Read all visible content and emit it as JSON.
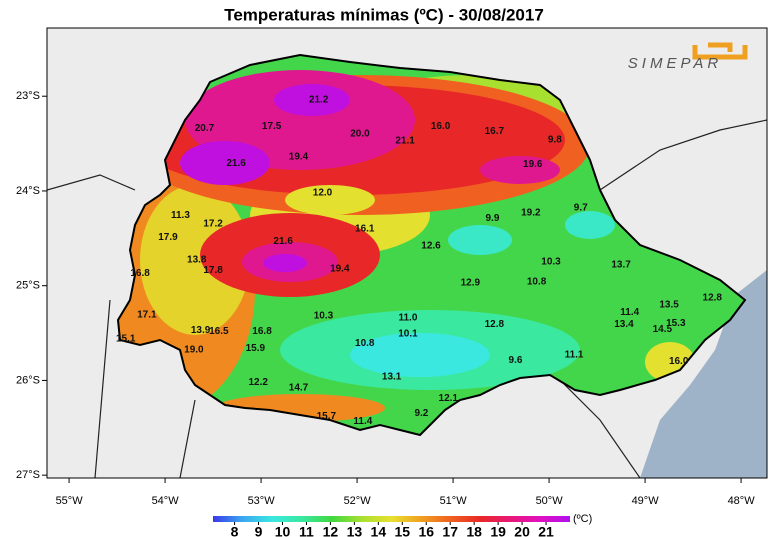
{
  "title": "Temperaturas mínimas  (ºC) - 30/08/2017",
  "logo": "SIMEPAR",
  "map": {
    "xlim": [
      -55.23,
      -47.73
    ],
    "ylim": [
      -27.03,
      -22.28
    ],
    "xticks": [
      {
        "value": -55,
        "label": "55°W"
      },
      {
        "value": -54,
        "label": "54°W"
      },
      {
        "value": -53,
        "label": "53°W"
      },
      {
        "value": -52,
        "label": "52°W"
      },
      {
        "value": -51,
        "label": "51°W"
      },
      {
        "value": -50,
        "label": "50°W"
      },
      {
        "value": -49,
        "label": "49°W"
      },
      {
        "value": -48,
        "label": "48°W"
      }
    ],
    "yticks": [
      {
        "value": -23,
        "label": "23°S"
      },
      {
        "value": -24,
        "label": "24°S"
      },
      {
        "value": -25,
        "label": "25°S"
      },
      {
        "value": -26,
        "label": "26°S"
      },
      {
        "value": -27,
        "label": "27°S"
      }
    ],
    "stations": [
      {
        "label": "21.2",
        "lon": -52.4,
        "lat": -23.04
      },
      {
        "label": "20.7",
        "lon": -53.59,
        "lat": -23.34
      },
      {
        "label": "17.5",
        "lon": -52.89,
        "lat": -23.32
      },
      {
        "label": "20.0",
        "lon": -51.97,
        "lat": -23.4
      },
      {
        "label": "21.1",
        "lon": -51.5,
        "lat": -23.47
      },
      {
        "label": "16.0",
        "lon": -51.13,
        "lat": -23.32
      },
      {
        "label": "16.7",
        "lon": -50.57,
        "lat": -23.37
      },
      {
        "label": "9.8",
        "lon": -49.94,
        "lat": -23.46
      },
      {
        "label": "21.6",
        "lon": -53.26,
        "lat": -23.71
      },
      {
        "label": "19.4",
        "lon": -52.61,
        "lat": -23.64
      },
      {
        "label": "19.6",
        "lon": -50.17,
        "lat": -23.72
      },
      {
        "label": "12.0",
        "lon": -52.36,
        "lat": -24.02
      },
      {
        "label": "11.3",
        "lon": -53.84,
        "lat": -24.26
      },
      {
        "label": "17.2",
        "lon": -53.5,
        "lat": -24.35
      },
      {
        "label": "9.9",
        "lon": -50.59,
        "lat": -24.29
      },
      {
        "label": "19.2",
        "lon": -50.19,
        "lat": -24.23
      },
      {
        "label": "9.7",
        "lon": -49.67,
        "lat": -24.18
      },
      {
        "label": "16.1",
        "lon": -51.92,
        "lat": -24.4
      },
      {
        "label": "17.9",
        "lon": -53.97,
        "lat": -24.49
      },
      {
        "label": "21.6",
        "lon": -52.77,
        "lat": -24.53
      },
      {
        "label": "12.6",
        "lon": -51.23,
        "lat": -24.58
      },
      {
        "label": "13.8",
        "lon": -53.67,
        "lat": -24.73
      },
      {
        "label": "17.8",
        "lon": -53.5,
        "lat": -24.84
      },
      {
        "label": "19.4",
        "lon": -52.18,
        "lat": -24.82
      },
      {
        "label": "10.3",
        "lon": -49.98,
        "lat": -24.75
      },
      {
        "label": "13.7",
        "lon": -49.25,
        "lat": -24.78
      },
      {
        "label": "16.8",
        "lon": -54.26,
        "lat": -24.87
      },
      {
        "label": "12.9",
        "lon": -50.82,
        "lat": -24.97
      },
      {
        "label": "10.8",
        "lon": -50.13,
        "lat": -24.96
      },
      {
        "label": "12.8",
        "lon": -48.3,
        "lat": -25.13
      },
      {
        "label": "17.1",
        "lon": -54.19,
        "lat": -25.31
      },
      {
        "label": "10.3",
        "lon": -52.35,
        "lat": -25.32
      },
      {
        "label": "11.0",
        "lon": -51.47,
        "lat": -25.34
      },
      {
        "label": "11.4",
        "lon": -49.16,
        "lat": -25.28
      },
      {
        "label": "13.5",
        "lon": -48.75,
        "lat": -25.2
      },
      {
        "label": "13.9",
        "lon": -53.63,
        "lat": -25.47
      },
      {
        "label": "16.5",
        "lon": -53.44,
        "lat": -25.48
      },
      {
        "label": "16.8",
        "lon": -52.99,
        "lat": -25.48
      },
      {
        "label": "10.1",
        "lon": -51.47,
        "lat": -25.51
      },
      {
        "label": "12.8",
        "lon": -50.57,
        "lat": -25.41
      },
      {
        "label": "13.4",
        "lon": -49.22,
        "lat": -25.41
      },
      {
        "label": "14.5",
        "lon": -48.82,
        "lat": -25.46
      },
      {
        "label": "15.3",
        "lon": -48.68,
        "lat": -25.4
      },
      {
        "label": "15.1",
        "lon": -54.41,
        "lat": -25.56
      },
      {
        "label": "19.0",
        "lon": -53.7,
        "lat": -25.68
      },
      {
        "label": "15.9",
        "lon": -53.06,
        "lat": -25.66
      },
      {
        "label": "10.8",
        "lon": -51.92,
        "lat": -25.61
      },
      {
        "label": "11.1",
        "lon": -49.74,
        "lat": -25.73
      },
      {
        "label": "16.0",
        "lon": -48.65,
        "lat": -25.8
      },
      {
        "label": "9.6",
        "lon": -50.35,
        "lat": -25.79
      },
      {
        "label": "13.1",
        "lon": -51.64,
        "lat": -25.96
      },
      {
        "label": "12.2",
        "lon": -53.03,
        "lat": -26.02
      },
      {
        "label": "14.7",
        "lon": -52.61,
        "lat": -26.08
      },
      {
        "label": "12.1",
        "lon": -51.05,
        "lat": -26.19
      },
      {
        "label": "15.7",
        "lon": -52.32,
        "lat": -26.38
      },
      {
        "label": "11.4",
        "lon": -51.94,
        "lat": -26.43
      },
      {
        "label": "9.2",
        "lon": -51.33,
        "lat": -26.35
      }
    ]
  },
  "colorbar": {
    "range": [
      7.1,
      22.0
    ],
    "ticks": [
      8,
      9,
      10,
      11,
      12,
      13,
      14,
      15,
      16,
      17,
      18,
      19,
      20,
      21
    ],
    "unit": "(ºC)",
    "colors": [
      "#3a3ae8",
      "#3aa8f0",
      "#3ae8e0",
      "#3ae8a0",
      "#40d840",
      "#a8e030",
      "#e8e030",
      "#f0a020",
      "#f06020",
      "#e82828",
      "#e81878",
      "#e010c0",
      "#b010f0"
    ]
  }
}
